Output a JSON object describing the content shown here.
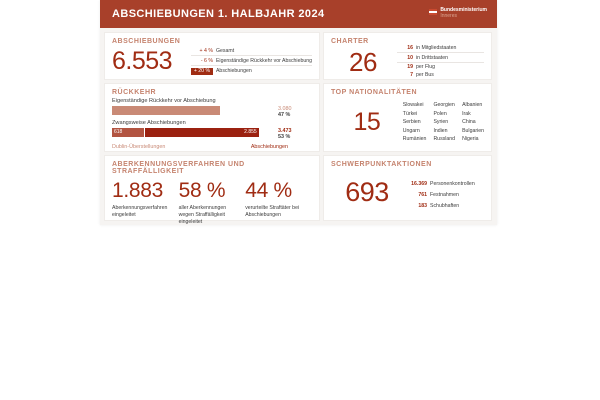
{
  "header": {
    "title": "ABSCHIEBUNGEN 1. HALBJAHR 2024",
    "logo": {
      "line1": "Bundesministerium",
      "line2": "Inneres"
    }
  },
  "cards": {
    "abschiebungen": {
      "title": "ABSCHIEBUNGEN",
      "value": "6.553",
      "rows": [
        {
          "delta": "+ 4 %",
          "label": "Gesamt"
        },
        {
          "delta": "- 6 %",
          "label": "Eigenständige Rückkehr vor Abschiebung"
        },
        {
          "delta": "+ 20 %",
          "label": "Abschiebungen"
        }
      ]
    },
    "charter": {
      "title": "CHARTER",
      "value": "26",
      "group1": [
        {
          "num": "16",
          "label": "in Mitgliedstaaten"
        },
        {
          "num": "10",
          "label": "in Drittstaaten"
        }
      ],
      "group2": [
        {
          "num": "19",
          "label": "per Flug"
        },
        {
          "num": "7",
          "label": "per Bus"
        }
      ]
    },
    "rueckkehr": {
      "title": "RÜCKKEHR",
      "bar1": {
        "label": "Eigenständige Rückkehr vor Abschiebung",
        "value": "3.080",
        "percent": "47 %"
      },
      "bar2": {
        "label": "Zwangsweise Abschiebungen",
        "seg1": "618",
        "seg2": "2.855",
        "total": "3.473",
        "percent": "53 %"
      },
      "legend_left": "Dublin-Überstellungen",
      "legend_right": "Abschiebungen"
    },
    "nationalitaeten": {
      "title": "TOP NATIONALITÄTEN",
      "value": "15",
      "columns": [
        [
          "Slowakei",
          "Türkei",
          "Serbien",
          "Ungarn",
          "Rumänien"
        ],
        [
          "Georgien",
          "Polen",
          "Syrien",
          "Indien",
          "Russland"
        ],
        [
          "Albanien",
          "Irak",
          "China",
          "Bulgarien",
          "Nigeria"
        ]
      ]
    },
    "aberkennung": {
      "title": "ABERKENNUNGSVERFAHREN UND STRAFFÄLLIGKEIT",
      "stats": [
        {
          "value": "1.883",
          "label": "Aberkennungsverfahren eingeleitet"
        },
        {
          "value": "58 %",
          "label": "aller Aberkennungen wegen Straffälligkeit eingeleitet"
        },
        {
          "value": "44 %",
          "label": "verurteilte Straftäter bei Abschiebungen"
        }
      ]
    },
    "schwerpunkt": {
      "title": "SCHWERPUNKTAKTIONEN",
      "value": "693",
      "rows": [
        {
          "num": "16.369",
          "label": "Personenkontrollen"
        },
        {
          "num": "761",
          "label": "Festnahmen"
        },
        {
          "num": "183",
          "label": "Schubhaften"
        }
      ]
    }
  },
  "chart_data": {
    "type": "bar",
    "orientation": "horizontal",
    "title": "RÜCKKEHR",
    "legend": [
      "Dublin-Überstellungen",
      "Abschiebungen"
    ],
    "bars": [
      {
        "label": "Eigenständige Rückkehr vor Abschiebung",
        "total": 3080,
        "percent": 47,
        "display_width_pct": 66,
        "segments": [
          {
            "name": "Eigenständige Rückkehr vor Abschiebung",
            "value": 3080
          }
        ]
      },
      {
        "label": "Zwangsweise Abschiebungen",
        "total": 3473,
        "percent": 53,
        "display_width_pct": 90,
        "segments": [
          {
            "name": "Dublin-Überstellungen",
            "value": 618
          },
          {
            "name": "Abschiebungen",
            "value": 2855
          }
        ]
      }
    ]
  },
  "colors": {
    "header_bg": "#A8402A",
    "accent_dark": "#A02C13",
    "title_salmon": "#C5836E",
    "bar_salmon": "#C98A76",
    "seg_medium": "#B25441",
    "seg_dark": "#9B2110",
    "text_dark": "#3C3C3C",
    "card_bg": "#FFFFFF",
    "content_bg": "#F6F4F2",
    "divider": "#E9E5E2"
  }
}
